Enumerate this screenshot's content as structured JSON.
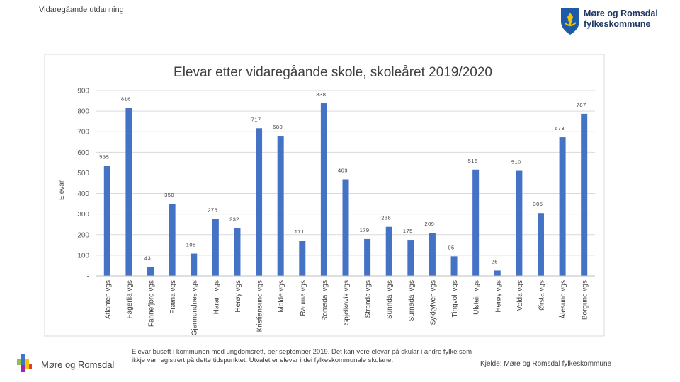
{
  "header": {
    "label": "Vidaregåande utdanning"
  },
  "logo": {
    "line1": "Møre og Romsdal",
    "line2": "fylkeskommune",
    "shield_color": "#1e5aa8",
    "accent_color": "#f2c500"
  },
  "chart_data": {
    "type": "bar",
    "title": "Elevar etter vidaregåande skole, skoleåret 2019/2020",
    "xlabel": "",
    "ylabel": "Elevar",
    "ylim": [
      0,
      900
    ],
    "yticks": [
      0,
      100,
      200,
      300,
      400,
      500,
      600,
      700,
      800,
      900
    ],
    "ytick_labels": [
      "-",
      "100",
      "200",
      "300",
      "400",
      "500",
      "600",
      "700",
      "800",
      "900"
    ],
    "grid": true,
    "legend": "none",
    "bar_color": "#4472c4",
    "categories": [
      "Atlanten vgs",
      "Fagerlia vgs",
      "Fannefjord vgs",
      "Fræna vgs",
      "Gjermundnes vgs",
      "Haram vgs",
      "Herøy vgs",
      "Kristiansund vgs",
      "Molde vgs",
      "Rauma vgs",
      "Romsdal vgs",
      "Spjelkavik vgs",
      "Stranda vgs",
      "Sunndal vgs",
      "Surnadal vgs",
      "Sykkylven vgs",
      "Tingvoll vgs",
      "Ulstein vgs",
      "Herøy vgs",
      "Volda vgs",
      "Ørsta vgs",
      "Ålesund vgs",
      "Borgund vgs"
    ],
    "values": [
      535,
      816,
      43,
      350,
      108,
      276,
      232,
      717,
      680,
      171,
      838,
      469,
      179,
      238,
      175,
      209,
      95,
      516,
      26,
      510,
      305,
      673,
      787
    ],
    "data_labels": [
      "535",
      "816",
      "43",
      "350",
      "108",
      "276",
      "232",
      "717",
      "680",
      "171",
      "838",
      "469",
      "179",
      "238",
      "175",
      "209",
      "95",
      "516",
      "26",
      "510",
      "305",
      "673",
      "787"
    ]
  },
  "footer": {
    "logo_text": "Møre og Romsdal",
    "note": "Elevar busett i kommunen med ungdomsrett, per september 2019. Det kan vere elevar på skular i andre fylke som ikkje var registrert på dette tidspunktet. Utvalet er elevar i dei fylkeskommunale skulane.",
    "source": "Kjelde: Møre og Romsdal fylkeskommune"
  }
}
